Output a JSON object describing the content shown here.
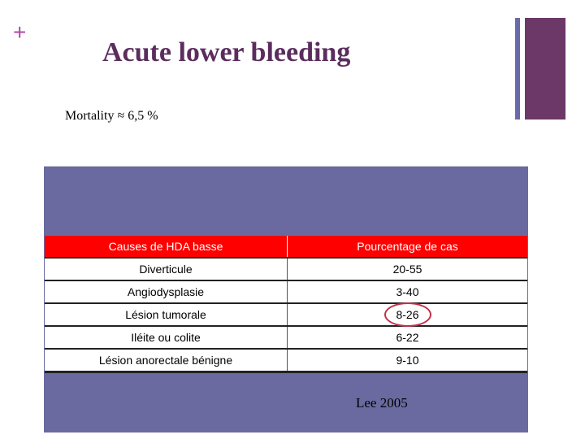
{
  "slide": {
    "plus_mark": "+",
    "title": "Acute lower bleeding",
    "subtitle": "Mortality ≈ 6,5 %",
    "citation": "Lee  2005"
  },
  "table": {
    "headers": [
      "Causes de HDA basse",
      "Pourcentage de cas"
    ],
    "rows": [
      {
        "cause": "Diverticule",
        "percent": "20-55"
      },
      {
        "cause": "Angiodysplasie",
        "percent": "3-40"
      },
      {
        "cause": "Lésion tumorale",
        "percent": "8-26",
        "highlighted": true
      },
      {
        "cause": "Iléite ou colite",
        "percent": "6-22"
      },
      {
        "cause": "Lésion anorectale bénigne",
        "percent": "9-10"
      }
    ]
  },
  "colors": {
    "title": "#5b2d5e",
    "panel": "#6a6aa0",
    "header_bg": "#ff0000",
    "highlight_circle": "#c0304a",
    "deco_thin": "#6a6aa8",
    "deco_thick": "#6b3868"
  }
}
